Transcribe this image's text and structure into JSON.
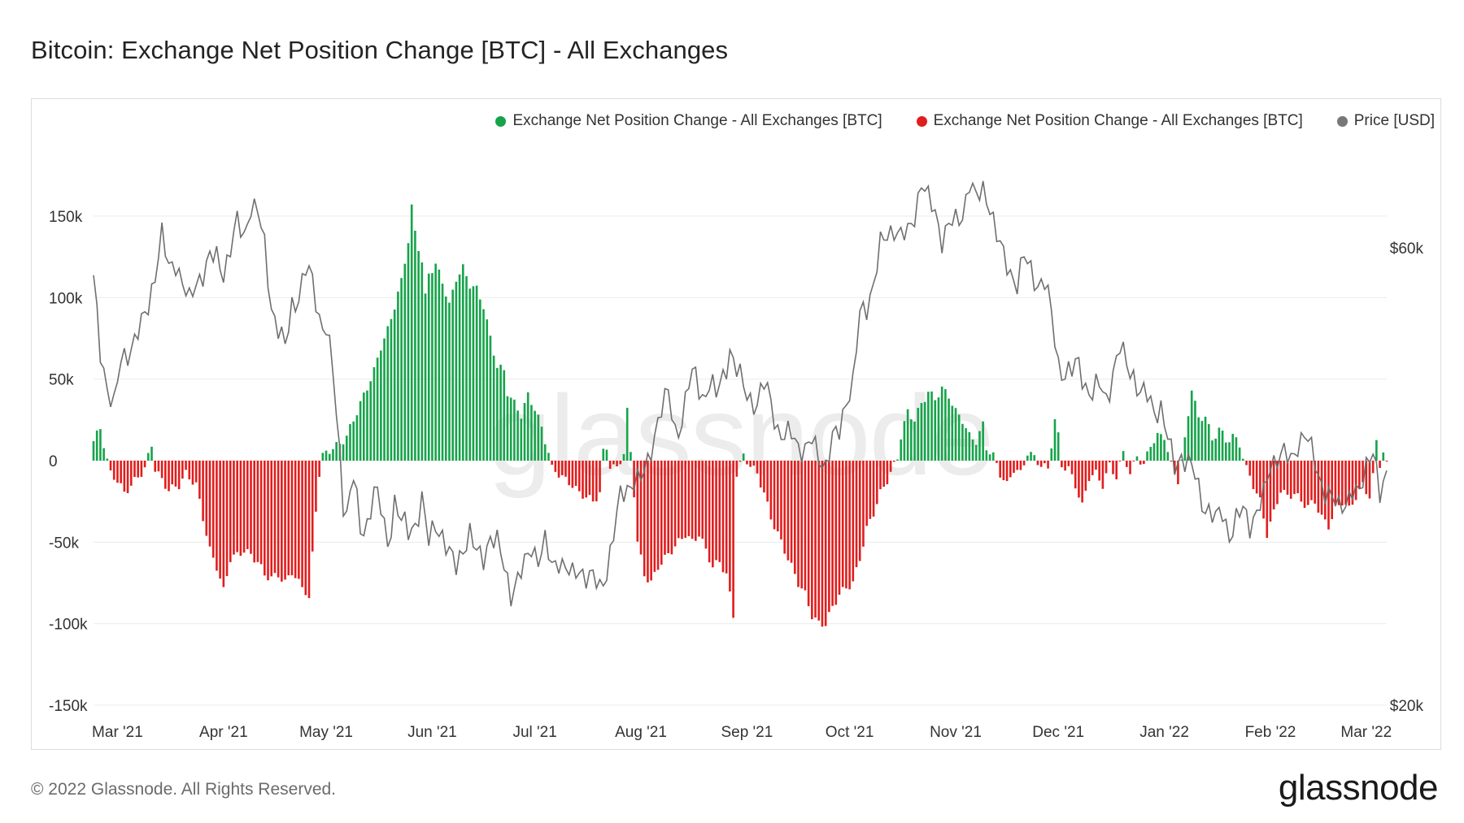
{
  "title": "Bitcoin: Exchange Net Position Change [BTC] - All Exchanges",
  "legend": [
    {
      "label": "Exchange Net Position Change - All Exchanges [BTC]",
      "color": "#16a34a"
    },
    {
      "label": "Exchange Net Position Change - All Exchanges [BTC]",
      "color": "#e11d1d"
    },
    {
      "label": "Price [USD]",
      "color": "#777777"
    }
  ],
  "footer": "© 2022 Glassnode. All Rights Reserved.",
  "brand": "glassnode",
  "watermark": "glassnode",
  "chart_data": {
    "type": "bar",
    "title": "Bitcoin: Exchange Net Position Change [BTC] - All Exchanges",
    "ylim": [
      -150000,
      150000
    ],
    "y2lim": [
      20000,
      60000
    ],
    "y_ticks": [
      {
        "value": 150000,
        "label": "150k"
      },
      {
        "value": 100000,
        "label": "100k"
      },
      {
        "value": 50000,
        "label": "50k"
      },
      {
        "value": 0,
        "label": "0"
      },
      {
        "value": -50000,
        "label": "-50k"
      },
      {
        "value": -100000,
        "label": "-100k"
      },
      {
        "value": -150000,
        "label": "-150k"
      }
    ],
    "y2_ticks": [
      {
        "value": 60000,
        "label": "$60k"
      },
      {
        "value": 20000,
        "label": "$20k"
      }
    ],
    "x_ticks": [
      {
        "day": 7,
        "label": "Mar '21"
      },
      {
        "day": 38,
        "label": "Apr '21"
      },
      {
        "day": 68,
        "label": "May '21"
      },
      {
        "day": 99,
        "label": "Jun '21"
      },
      {
        "day": 129,
        "label": "Jul '21"
      },
      {
        "day": 160,
        "label": "Aug '21"
      },
      {
        "day": 191,
        "label": "Sep '21"
      },
      {
        "day": 221,
        "label": "Oct '21"
      },
      {
        "day": 252,
        "label": "Nov '21"
      },
      {
        "day": 282,
        "label": "Dec '21"
      },
      {
        "day": 313,
        "label": "Jan '22"
      },
      {
        "day": 344,
        "label": "Feb '22"
      },
      {
        "day": 372,
        "label": "Mar '22"
      }
    ],
    "x_range": [
      0,
      378
    ],
    "net_position_anchors": [
      [
        0,
        12000
      ],
      [
        2,
        20000
      ],
      [
        3,
        10000
      ],
      [
        4,
        0
      ],
      [
        5,
        -8000
      ],
      [
        7,
        -12000
      ],
      [
        9,
        -20000
      ],
      [
        11,
        -15000
      ],
      [
        13,
        -10000
      ],
      [
        15,
        -5000
      ],
      [
        17,
        10000
      ],
      [
        18,
        -5000
      ],
      [
        20,
        -12000
      ],
      [
        22,
        -18000
      ],
      [
        25,
        -15000
      ],
      [
        27,
        -8000
      ],
      [
        30,
        -15000
      ],
      [
        32,
        -35000
      ],
      [
        34,
        -55000
      ],
      [
        36,
        -65000
      ],
      [
        38,
        -80000
      ],
      [
        40,
        -60000
      ],
      [
        42,
        -58000
      ],
      [
        44,
        -55000
      ],
      [
        46,
        -58000
      ],
      [
        48,
        -62000
      ],
      [
        50,
        -70000
      ],
      [
        52,
        -72000
      ],
      [
        54,
        -70000
      ],
      [
        56,
        -75000
      ],
      [
        58,
        -68000
      ],
      [
        60,
        -75000
      ],
      [
        62,
        -80000
      ],
      [
        63,
        -85000
      ],
      [
        64,
        -58000
      ],
      [
        65,
        -30000
      ],
      [
        66,
        -8000
      ],
      [
        67,
        3000
      ],
      [
        70,
        8000
      ],
      [
        72,
        10000
      ],
      [
        74,
        15000
      ],
      [
        76,
        25000
      ],
      [
        78,
        35000
      ],
      [
        80,
        45000
      ],
      [
        82,
        55000
      ],
      [
        84,
        70000
      ],
      [
        86,
        80000
      ],
      [
        88,
        95000
      ],
      [
        90,
        110000
      ],
      [
        92,
        135000
      ],
      [
        93,
        155000
      ],
      [
        94,
        140000
      ],
      [
        96,
        122000
      ],
      [
        97,
        100000
      ],
      [
        98,
        115000
      ],
      [
        100,
        120000
      ],
      [
        102,
        110000
      ],
      [
        104,
        95000
      ],
      [
        106,
        112000
      ],
      [
        108,
        118000
      ],
      [
        110,
        108000
      ],
      [
        112,
        105000
      ],
      [
        114,
        95000
      ],
      [
        116,
        75000
      ],
      [
        118,
        58000
      ],
      [
        120,
        55000
      ],
      [
        121,
        42000
      ],
      [
        123,
        35000
      ],
      [
        125,
        28000
      ],
      [
        127,
        40000
      ],
      [
        129,
        32000
      ],
      [
        131,
        20000
      ],
      [
        133,
        5000
      ],
      [
        134,
        -5000
      ],
      [
        136,
        -8000
      ],
      [
        138,
        -12000
      ],
      [
        140,
        -15000
      ],
      [
        142,
        -20000
      ],
      [
        144,
        -22000
      ],
      [
        146,
        -25000
      ],
      [
        148,
        -20000
      ],
      [
        149,
        5000
      ],
      [
        150,
        8000
      ],
      [
        151,
        -3000
      ],
      [
        153,
        -5000
      ],
      [
        155,
        5000
      ],
      [
        156,
        30000
      ],
      [
        158,
        -20000
      ],
      [
        159,
        -50000
      ],
      [
        161,
        -70000
      ],
      [
        163,
        -75000
      ],
      [
        165,
        -65000
      ],
      [
        167,
        -60000
      ],
      [
        169,
        -55000
      ],
      [
        171,
        -50000
      ],
      [
        173,
        -45000
      ],
      [
        175,
        -50000
      ],
      [
        177,
        -45000
      ],
      [
        179,
        -55000
      ],
      [
        181,
        -65000
      ],
      [
        183,
        -62000
      ],
      [
        185,
        -70000
      ],
      [
        187,
        -95000
      ],
      [
        188,
        -8000
      ],
      [
        190,
        3000
      ],
      [
        192,
        -3000
      ],
      [
        194,
        -8000
      ],
      [
        196,
        -20000
      ],
      [
        198,
        -35000
      ],
      [
        200,
        -45000
      ],
      [
        202,
        -55000
      ],
      [
        204,
        -65000
      ],
      [
        206,
        -75000
      ],
      [
        208,
        -82000
      ],
      [
        210,
        -95000
      ],
      [
        212,
        -100000
      ],
      [
        214,
        -100000
      ],
      [
        216,
        -90000
      ],
      [
        218,
        -82000
      ],
      [
        220,
        -78000
      ],
      [
        222,
        -75000
      ],
      [
        224,
        -60000
      ],
      [
        226,
        -42000
      ],
      [
        228,
        -32000
      ],
      [
        230,
        -20000
      ],
      [
        232,
        -12000
      ],
      [
        234,
        -3000
      ],
      [
        235,
        2000
      ],
      [
        236,
        15000
      ],
      [
        238,
        30000
      ],
      [
        240,
        25000
      ],
      [
        242,
        35000
      ],
      [
        244,
        42000
      ],
      [
        246,
        38000
      ],
      [
        248,
        44000
      ],
      [
        250,
        40000
      ],
      [
        252,
        30000
      ],
      [
        254,
        25000
      ],
      [
        256,
        15000
      ],
      [
        258,
        12000
      ],
      [
        260,
        22000
      ],
      [
        261,
        8000
      ],
      [
        263,
        3000
      ],
      [
        265,
        -8000
      ],
      [
        267,
        -15000
      ],
      [
        269,
        -5000
      ],
      [
        271,
        -8000
      ],
      [
        273,
        5000
      ],
      [
        275,
        2000
      ],
      [
        277,
        -3000
      ],
      [
        279,
        -5000
      ],
      [
        281,
        25000
      ],
      [
        282,
        15000
      ],
      [
        283,
        -3000
      ],
      [
        285,
        -5000
      ],
      [
        287,
        -15000
      ],
      [
        289,
        -28000
      ],
      [
        291,
        -10000
      ],
      [
        293,
        -8000
      ],
      [
        295,
        -15000
      ],
      [
        297,
        -3000
      ],
      [
        299,
        -10000
      ],
      [
        301,
        5000
      ],
      [
        303,
        -8000
      ],
      [
        305,
        3000
      ],
      [
        307,
        -3000
      ],
      [
        309,
        10000
      ],
      [
        311,
        15000
      ],
      [
        313,
        15000
      ],
      [
        315,
        -3000
      ],
      [
        317,
        -12000
      ],
      [
        319,
        12000
      ],
      [
        321,
        45000
      ],
      [
        323,
        25000
      ],
      [
        325,
        28000
      ],
      [
        327,
        12000
      ],
      [
        329,
        20000
      ],
      [
        331,
        12000
      ],
      [
        333,
        15000
      ],
      [
        335,
        10000
      ],
      [
        337,
        -5000
      ],
      [
        339,
        -15000
      ],
      [
        341,
        -25000
      ],
      [
        343,
        -45000
      ],
      [
        345,
        -32000
      ],
      [
        347,
        -18000
      ],
      [
        349,
        -22000
      ],
      [
        351,
        -20000
      ],
      [
        353,
        -25000
      ],
      [
        355,
        -28000
      ],
      [
        357,
        -25000
      ],
      [
        359,
        -35000
      ],
      [
        361,
        -40000
      ],
      [
        363,
        -30000
      ],
      [
        365,
        -25000
      ],
      [
        367,
        -30000
      ],
      [
        369,
        -22000
      ],
      [
        371,
        -15000
      ],
      [
        373,
        -22000
      ],
      [
        374,
        -10000
      ],
      [
        375,
        12000
      ],
      [
        376,
        -2000
      ],
      [
        377,
        5000
      ],
      [
        378,
        -3000
      ]
    ],
    "price_anchors": [
      [
        0,
        57000
      ],
      [
        2,
        51000
      ],
      [
        4,
        48000
      ],
      [
        6,
        46000
      ],
      [
        8,
        50000
      ],
      [
        10,
        51000
      ],
      [
        12,
        52000
      ],
      [
        14,
        53000
      ],
      [
        16,
        55000
      ],
      [
        18,
        58000
      ],
      [
        19,
        59500
      ],
      [
        20,
        61000
      ],
      [
        22,
        58000
      ],
      [
        24,
        59000
      ],
      [
        26,
        57000
      ],
      [
        28,
        55000
      ],
      [
        30,
        57000
      ],
      [
        32,
        58000
      ],
      [
        34,
        59000
      ],
      [
        36,
        59000
      ],
      [
        38,
        58000
      ],
      [
        40,
        60000
      ],
      [
        42,
        62000
      ],
      [
        44,
        61000
      ],
      [
        46,
        64000
      ],
      [
        48,
        63000
      ],
      [
        50,
        60000
      ],
      [
        52,
        55000
      ],
      [
        54,
        53000
      ],
      [
        56,
        51000
      ],
      [
        58,
        55000
      ],
      [
        60,
        56000
      ],
      [
        62,
        58000
      ],
      [
        64,
        57000
      ],
      [
        66,
        54000
      ],
      [
        68,
        53000
      ],
      [
        70,
        49000
      ],
      [
        71,
        45000
      ],
      [
        72,
        42000
      ],
      [
        73,
        38000
      ],
      [
        74,
        37000
      ],
      [
        76,
        40000
      ],
      [
        78,
        35000
      ],
      [
        80,
        36000
      ],
      [
        82,
        39000
      ],
      [
        84,
        37000
      ],
      [
        86,
        34000
      ],
      [
        88,
        38000
      ],
      [
        90,
        36000
      ],
      [
        92,
        35000
      ],
      [
        94,
        36000
      ],
      [
        96,
        38000
      ],
      [
        98,
        34000
      ],
      [
        100,
        36000
      ],
      [
        102,
        35000
      ],
      [
        104,
        33000
      ],
      [
        106,
        32000
      ],
      [
        108,
        34000
      ],
      [
        110,
        35000
      ],
      [
        112,
        33000
      ],
      [
        114,
        33000
      ],
      [
        116,
        35000
      ],
      [
        118,
        34000
      ],
      [
        120,
        32000
      ],
      [
        122,
        30000
      ],
      [
        124,
        31000
      ],
      [
        126,
        32000
      ],
      [
        128,
        34000
      ],
      [
        130,
        33000
      ],
      [
        132,
        34000
      ],
      [
        134,
        32000
      ],
      [
        136,
        33000
      ],
      [
        138,
        32000
      ],
      [
        140,
        31000
      ],
      [
        142,
        32000
      ],
      [
        144,
        31500
      ],
      [
        146,
        31000
      ],
      [
        148,
        30000
      ],
      [
        150,
        32000
      ],
      [
        152,
        35000
      ],
      [
        154,
        38000
      ],
      [
        156,
        39000
      ],
      [
        158,
        40000
      ],
      [
        160,
        39500
      ],
      [
        162,
        41000
      ],
      [
        164,
        44000
      ],
      [
        166,
        46000
      ],
      [
        168,
        47000
      ],
      [
        170,
        44000
      ],
      [
        172,
        45000
      ],
      [
        174,
        48000
      ],
      [
        176,
        49000
      ],
      [
        178,
        47000
      ],
      [
        180,
        48000
      ],
      [
        182,
        47000
      ],
      [
        184,
        49000
      ],
      [
        186,
        51000
      ],
      [
        188,
        49000
      ],
      [
        190,
        48000
      ],
      [
        192,
        47000
      ],
      [
        194,
        46000
      ],
      [
        196,
        48000
      ],
      [
        198,
        47000
      ],
      [
        200,
        44000
      ],
      [
        202,
        43000
      ],
      [
        204,
        44000
      ],
      [
        206,
        43000
      ],
      [
        208,
        42000
      ],
      [
        210,
        43000
      ],
      [
        212,
        42000
      ],
      [
        214,
        41000
      ],
      [
        216,
        43000
      ],
      [
        218,
        44000
      ],
      [
        220,
        47000
      ],
      [
        222,
        48000
      ],
      [
        224,
        54000
      ],
      [
        226,
        55000
      ],
      [
        228,
        57000
      ],
      [
        230,
        60000
      ],
      [
        232,
        61000
      ],
      [
        234,
        62000
      ],
      [
        236,
        61000
      ],
      [
        238,
        61000
      ],
      [
        240,
        63000
      ],
      [
        242,
        66000
      ],
      [
        244,
        64000
      ],
      [
        246,
        63000
      ],
      [
        248,
        61000
      ],
      [
        250,
        62000
      ],
      [
        252,
        62000
      ],
      [
        254,
        63000
      ],
      [
        256,
        66000
      ],
      [
        258,
        64000
      ],
      [
        260,
        65000
      ],
      [
        262,
        64000
      ],
      [
        264,
        61000
      ],
      [
        266,
        59000
      ],
      [
        268,
        58000
      ],
      [
        270,
        57000
      ],
      [
        272,
        59000
      ],
      [
        274,
        58000
      ],
      [
        276,
        57000
      ],
      [
        278,
        57000
      ],
      [
        280,
        54000
      ],
      [
        282,
        50000
      ],
      [
        284,
        49000
      ],
      [
        286,
        49000
      ],
      [
        288,
        50000
      ],
      [
        290,
        48000
      ],
      [
        292,
        47000
      ],
      [
        294,
        48000
      ],
      [
        296,
        47000
      ],
      [
        298,
        49000
      ],
      [
        300,
        51000
      ],
      [
        302,
        50000
      ],
      [
        304,
        49000
      ],
      [
        306,
        47000
      ],
      [
        308,
        47000
      ],
      [
        310,
        46000
      ],
      [
        312,
        46000
      ],
      [
        314,
        43000
      ],
      [
        316,
        41000
      ],
      [
        318,
        42000
      ],
      [
        320,
        41000
      ],
      [
        322,
        40000
      ],
      [
        324,
        38000
      ],
      [
        326,
        37000
      ],
      [
        328,
        36000
      ],
      [
        330,
        37000
      ],
      [
        332,
        35000
      ],
      [
        334,
        36000
      ],
      [
        336,
        37000
      ],
      [
        338,
        36000
      ],
      [
        340,
        37000
      ],
      [
        342,
        38000
      ],
      [
        344,
        41000
      ],
      [
        346,
        42000
      ],
      [
        348,
        42000
      ],
      [
        350,
        41000
      ],
      [
        352,
        43000
      ],
      [
        354,
        44000
      ],
      [
        356,
        42000
      ],
      [
        358,
        40000
      ],
      [
        360,
        39000
      ],
      [
        362,
        38000
      ],
      [
        364,
        37000
      ],
      [
        366,
        38000
      ],
      [
        368,
        39000
      ],
      [
        370,
        38000
      ],
      [
        372,
        41000
      ],
      [
        374,
        43000
      ],
      [
        376,
        38000
      ],
      [
        377,
        39000
      ],
      [
        378,
        39500
      ]
    ]
  }
}
